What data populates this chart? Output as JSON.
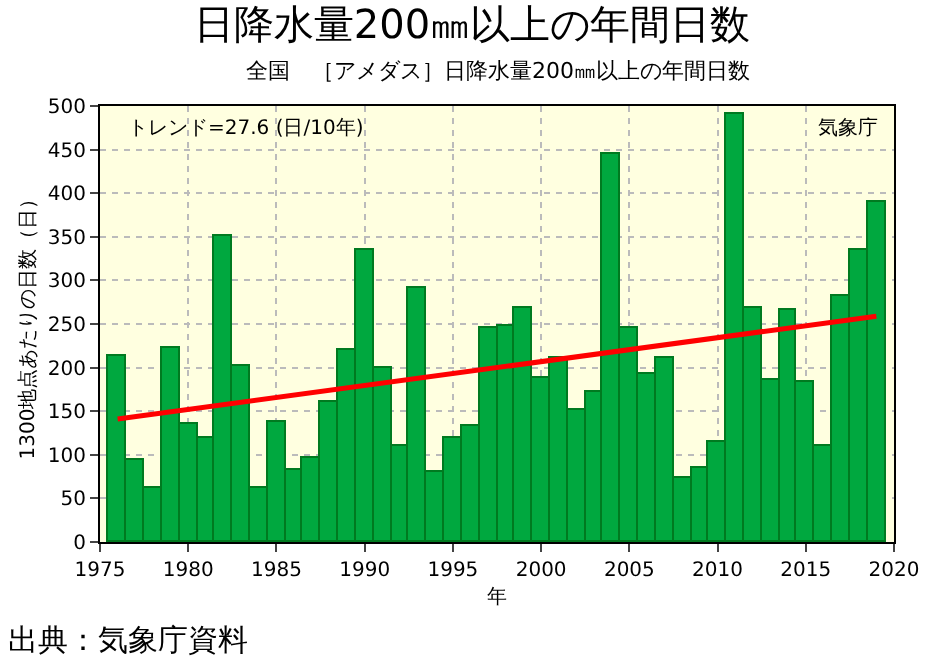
{
  "chart_data": {
    "type": "bar",
    "title": "日降水量200㎜以上の年間日数",
    "subtitle": "全国　［アメダス］日降水量200㎜以上の年間日数",
    "xlabel": "年",
    "ylabel": "1300地点あたりの日数（日）",
    "x": [
      1976,
      1977,
      1978,
      1979,
      1980,
      1981,
      1982,
      1983,
      1984,
      1985,
      1986,
      1987,
      1988,
      1989,
      1990,
      1991,
      1992,
      1993,
      1994,
      1995,
      1996,
      1997,
      1998,
      1999,
      2000,
      2001,
      2002,
      2003,
      2004,
      2005,
      2006,
      2007,
      2008,
      2009,
      2010,
      2011,
      2012,
      2013,
      2014,
      2015,
      2016,
      2017,
      2018,
      2019
    ],
    "series": [
      {
        "color": "#00a83f",
        "values": [
          214,
          94,
          61,
          222,
          136,
          120,
          352,
          201,
          61,
          138,
          83,
          96,
          160,
          221,
          335,
          199,
          110,
          292,
          81,
          120,
          133,
          245,
          248,
          268,
          188,
          210,
          152,
          173,
          446,
          245,
          193,
          212,
          74,
          86,
          114,
          491,
          268,
          186,
          265,
          184,
          110,
          281,
          335,
          390
        ]
      },
      {
        "type": "line",
        "color": "#ff0000",
        "x": [
          1976,
          2019
        ],
        "values": [
          141,
          259
        ]
      }
    ],
    "xlim": [
      1975,
      2020
    ],
    "xticks": [
      1975,
      1980,
      1985,
      1990,
      1995,
      2000,
      2005,
      2010,
      2015,
      2020
    ],
    "ylim": [
      0,
      500
    ],
    "yticks": [
      0,
      50,
      100,
      150,
      200,
      250,
      300,
      350,
      400,
      450,
      500
    ],
    "grid": true,
    "annotations": [
      "トレンド=27.6 (日/10年)",
      "気象庁",
      "出典：気象庁資料"
    ]
  }
}
